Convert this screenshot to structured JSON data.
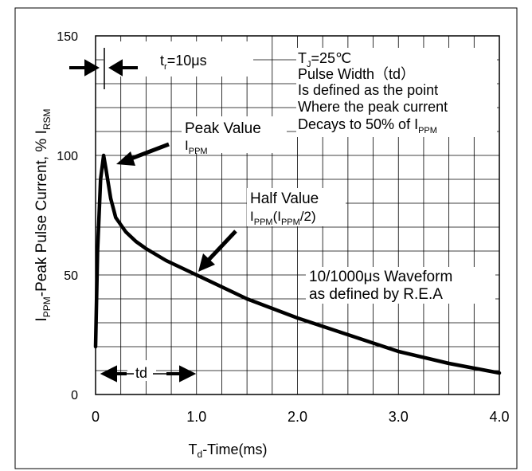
{
  "chart_data": {
    "type": "line",
    "title": "",
    "xlabel": {
      "main": "T",
      "sub": "d",
      "rest": "-Time(ms)"
    },
    "ylabel": {
      "p1": "I",
      "s1": "PPM",
      "p2": "-Peak Pulse Current, % I",
      "s2": "RSM"
    },
    "xlim": [
      0,
      4.0
    ],
    "ylim": [
      0,
      150
    ],
    "x_ticks": [
      {
        "value": 0,
        "label": "0"
      },
      {
        "value": 1.0,
        "label": "1.0"
      },
      {
        "value": 2.0,
        "label": "2.0"
      },
      {
        "value": 3.0,
        "label": "3.0"
      },
      {
        "value": 4.0,
        "label": "4.0"
      }
    ],
    "y_ticks": [
      {
        "value": 0,
        "label": "0"
      },
      {
        "value": 50,
        "label": "50"
      },
      {
        "value": 100,
        "label": "100"
      },
      {
        "value": 150,
        "label": "150"
      }
    ],
    "grid": true,
    "grid_x_step": 0.25,
    "grid_y_step": 10,
    "series": [
      {
        "name": "",
        "color": "#000000",
        "x": [
          0.0,
          0.02,
          0.05,
          0.08,
          0.1,
          0.15,
          0.2,
          0.3,
          0.4,
          0.5,
          0.7,
          1.0,
          1.5,
          2.0,
          2.5,
          3.0,
          3.5,
          4.0
        ],
        "y": [
          20,
          60,
          90,
          100,
          95,
          82,
          74,
          68,
          64,
          61,
          56,
          50,
          40,
          32,
          25,
          18,
          13,
          9
        ]
      }
    ],
    "annotations": {
      "rise_time": {
        "pre": "t",
        "sub": "r",
        "post": "=10μs"
      },
      "conditions": {
        "line1": {
          "pre": "T",
          "sub": "J",
          "post": "=25℃"
        },
        "line2": "Pulse Width（td）",
        "line3": "Is defined as the point",
        "line4": "Where the peak current",
        "line5": {
          "pre": "Decays to 50% of I",
          "sub": "PPM"
        }
      },
      "peak": {
        "line1": "Peak Value",
        "pre": "I",
        "sub": "PPM"
      },
      "half": {
        "line1": "Half Value",
        "pre": "I",
        "sub1": "PPM",
        "mid": "(I",
        "sub2": "PPM",
        "post": "/2)"
      },
      "waveform": {
        "line1": "10/1000μs Waveform",
        "line2": "as defined by R.E.A"
      },
      "td": "td"
    }
  }
}
